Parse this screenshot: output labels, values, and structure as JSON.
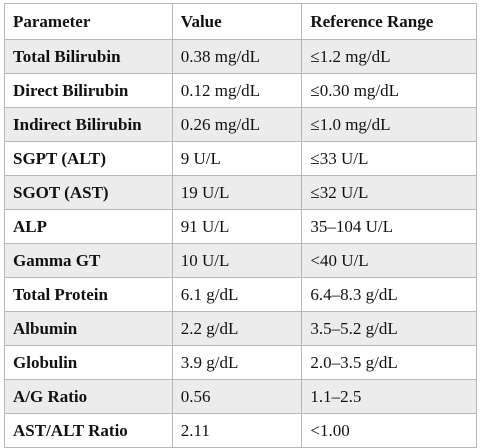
{
  "table": {
    "headers": [
      "Parameter",
      "Value",
      "Reference Range"
    ],
    "rows": [
      {
        "parameter": "Total Bilirubin",
        "value": "0.38 mg/dL",
        "range": "≤1.2 mg/dL"
      },
      {
        "parameter": "Direct Bilirubin",
        "value": "0.12 mg/dL",
        "range": "≤0.30 mg/dL"
      },
      {
        "parameter": "Indirect Bilirubin",
        "value": "0.26 mg/dL",
        "range": "≤1.0 mg/dL"
      },
      {
        "parameter": "SGPT (ALT)",
        "value": "9 U/L",
        "range": "≤33 U/L"
      },
      {
        "parameter": "SGOT (AST)",
        "value": "19 U/L",
        "range": "≤32 U/L"
      },
      {
        "parameter": "ALP",
        "value": "91 U/L",
        "range": "35–104 U/L"
      },
      {
        "parameter": "Gamma GT",
        "value": "10 U/L",
        "range": "<40 U/L"
      },
      {
        "parameter": "Total Protein",
        "value": "6.1 g/dL",
        "range": "6.4–8.3 g/dL"
      },
      {
        "parameter": "Albumin",
        "value": "2.2 g/dL",
        "range": "3.5–5.2 g/dL"
      },
      {
        "parameter": "Globulin",
        "value": "3.9 g/dL",
        "range": "2.0–3.5 g/dL"
      },
      {
        "parameter": "A/G Ratio",
        "value": "0.56",
        "range": "1.1–2.5"
      },
      {
        "parameter": "AST/ALT Ratio",
        "value": "2.11",
        "range": "<1.00"
      }
    ],
    "row_shading_color": "#ececec",
    "border_color": "#b8b8b8"
  }
}
